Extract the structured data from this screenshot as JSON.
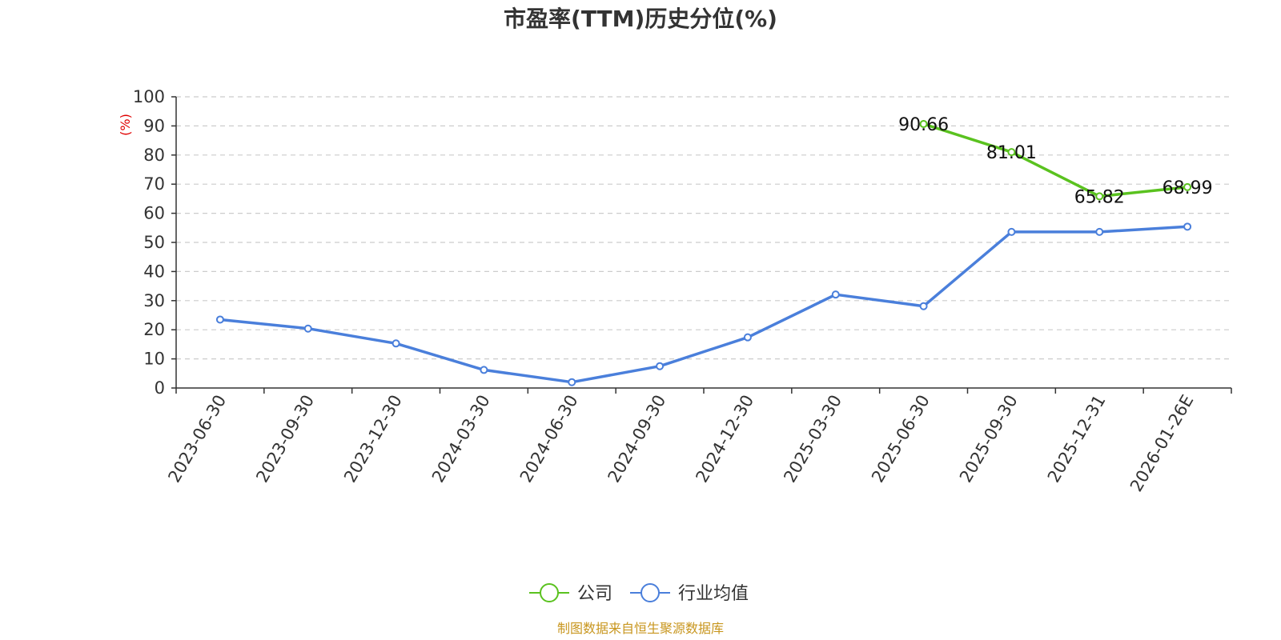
{
  "chart_data": {
    "type": "line",
    "title": "市盈率(TTM)历史分位(%)",
    "ylabel": "(%)",
    "ylim": [
      0,
      100
    ],
    "yticks": [
      0,
      10,
      20,
      30,
      40,
      50,
      60,
      70,
      80,
      90,
      100
    ],
    "grid": true,
    "legend_position": "bottom",
    "categories": [
      "2023-06-30",
      "2023-09-30",
      "2023-12-30",
      "2024-03-30",
      "2024-06-30",
      "2024-09-30",
      "2024-12-30",
      "2025-03-30",
      "2025-06-30",
      "2025-09-30",
      "2025-12-31",
      "2026-01-26E"
    ],
    "series": [
      {
        "name": "公司",
        "color": "#5ac21f",
        "show_labels": true,
        "values": [
          null,
          null,
          null,
          null,
          null,
          null,
          null,
          null,
          90.66,
          81.01,
          65.82,
          68.99
        ],
        "labels": [
          null,
          null,
          null,
          null,
          null,
          null,
          null,
          null,
          "90.66",
          "81.01",
          "65.82",
          "68.99"
        ]
      },
      {
        "name": "行业均值",
        "color": "#4a7fdb",
        "show_labels": false,
        "values": [
          23.5,
          20.4,
          15.3,
          6.2,
          2.0,
          7.5,
          17.4,
          32.1,
          28.1,
          53.6,
          53.6,
          55.4
        ]
      }
    ]
  },
  "source": {
    "text": "制图数据来自恒生聚源数据库",
    "color": "#c8961e"
  },
  "colors": {
    "axis": "#333333",
    "grid": "#cccccc",
    "ylabel": "#e00000"
  }
}
